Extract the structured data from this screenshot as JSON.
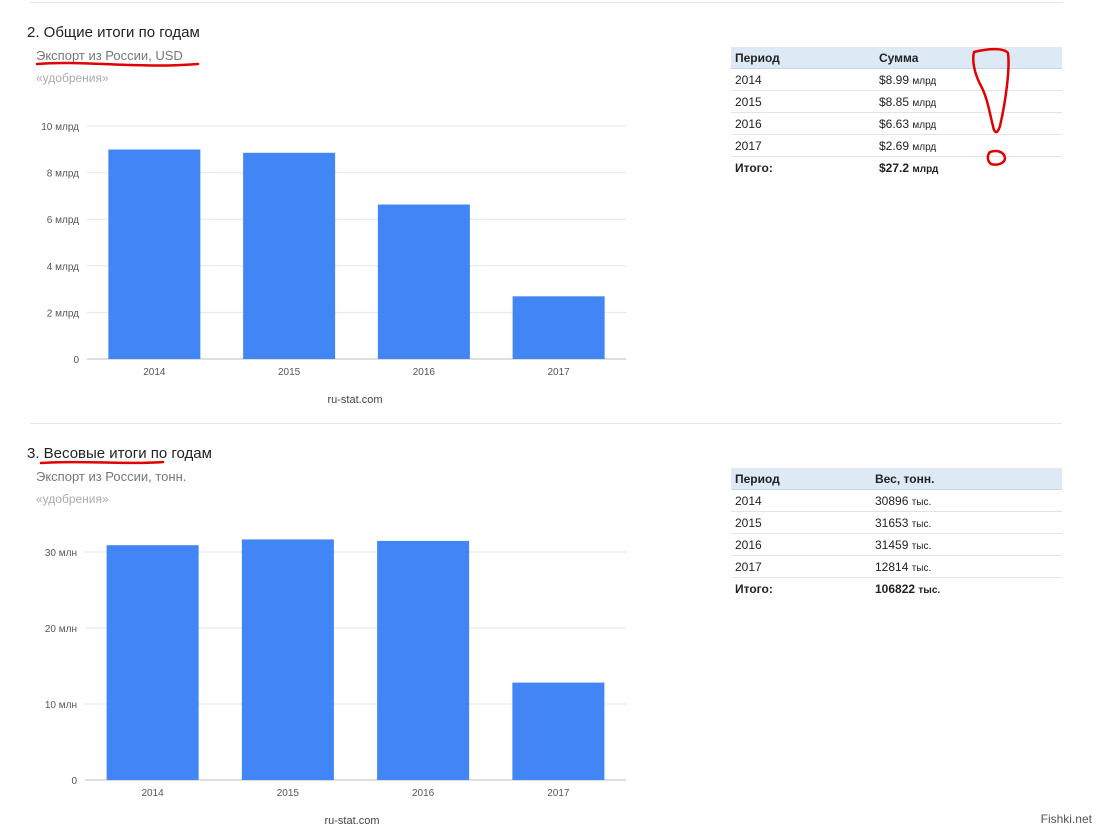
{
  "section2": {
    "title": "2. Общие итоги по годам",
    "subtitle": "Экспорт из России, USD",
    "category": "«удобрения»",
    "credit": "ru-stat.com",
    "table": {
      "headers": [
        "Период",
        "Сумма"
      ],
      "rows": [
        {
          "period": "2014",
          "value": "$8.99",
          "unit": "млрд"
        },
        {
          "period": "2015",
          "value": "$8.85",
          "unit": "млрд"
        },
        {
          "period": "2016",
          "value": "$6.63",
          "unit": "млрд"
        },
        {
          "period": "2017",
          "value": "$2.69",
          "unit": "млрд"
        }
      ],
      "total": {
        "label": "Итого:",
        "value": "$27.2",
        "unit": "млрд"
      }
    }
  },
  "section3": {
    "title": "3. Весовые итоги по годам",
    "subtitle": "Экспорт из России, тонн.",
    "category": "«удобрения»",
    "credit": "ru-stat.com",
    "table": {
      "headers": [
        "Период",
        "Вес, тонн."
      ],
      "rows": [
        {
          "period": "2014",
          "value": "30896",
          "unit": "тыс."
        },
        {
          "period": "2015",
          "value": "31653",
          "unit": "тыс."
        },
        {
          "period": "2016",
          "value": "31459",
          "unit": "тыс."
        },
        {
          "period": "2017",
          "value": "12814",
          "unit": "тыс."
        }
      ],
      "total": {
        "label": "Итого:",
        "value": "106822",
        "unit": "тыс."
      }
    }
  },
  "watermark": "Fishki.net",
  "colors": {
    "bar": "#4285f4",
    "annotation": "#e00000"
  },
  "chart_data": [
    {
      "type": "bar",
      "categories": [
        "2014",
        "2015",
        "2016",
        "2017"
      ],
      "values": [
        8.99,
        8.85,
        6.63,
        2.69
      ],
      "yticks": [
        0,
        2,
        4,
        6,
        8,
        10
      ],
      "ytick_labels": [
        "0",
        "2 млрд",
        "4 млрд",
        "6 млрд",
        "8 млрд",
        "10 млрд"
      ],
      "ylim": [
        0,
        10
      ],
      "grid": true
    },
    {
      "type": "bar",
      "categories": [
        "2014",
        "2015",
        "2016",
        "2017"
      ],
      "values": [
        30.896,
        31.653,
        31.459,
        12.814
      ],
      "yticks": [
        0,
        10,
        20,
        30
      ],
      "ytick_labels": [
        "0",
        "10 млн",
        "20 млн",
        "30 млн"
      ],
      "ylim": [
        0,
        30
      ],
      "grid": true
    }
  ]
}
